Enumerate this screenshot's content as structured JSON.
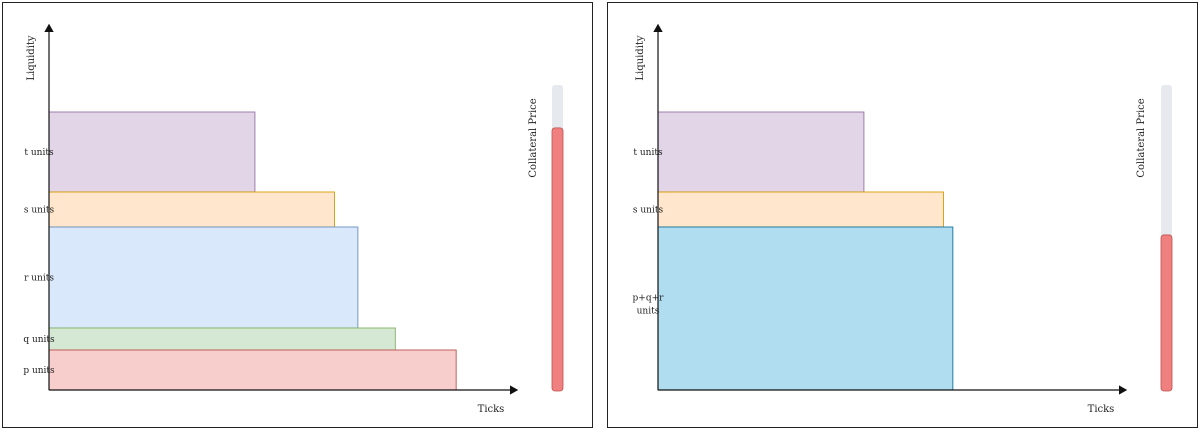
{
  "colors": {
    "purple_fill": "#e1d5e7",
    "purple_stroke": "#9673a6",
    "orange_fill": "#ffe6cc",
    "orange_stroke": "#d79b00",
    "blue_fill": "#dae8fc",
    "blue_stroke": "#6c8ebf",
    "green_fill": "#d5e8d4",
    "green_stroke": "#82b366",
    "red_fill": "#f8cecc",
    "red_stroke": "#b85450",
    "cyan_fill": "#b1ddf0",
    "cyan_stroke": "#10739e",
    "gauge_track": "#e6e9ee",
    "gauge_fill": "#f08080",
    "gauge_stroke": "#c0504d"
  },
  "left": {
    "y_axis_label": "Liquidity",
    "x_axis_label": "Ticks",
    "gauge_label": "Collateral Price",
    "gauge_level": 0.86,
    "bands": [
      {
        "label": "t units",
        "color": "purple",
        "tick_extent": 0.44
      },
      {
        "label": "s units",
        "color": "orange",
        "tick_extent": 0.61
      },
      {
        "label": "r units",
        "color": "blue",
        "tick_extent": 0.66
      },
      {
        "label": "q units",
        "color": "green",
        "tick_extent": 0.74
      },
      {
        "label": "p units",
        "color": "red",
        "tick_extent": 0.87
      }
    ]
  },
  "right": {
    "y_axis_label": "Liquidity",
    "x_axis_label": "Ticks",
    "gauge_label": "Collateral Price",
    "gauge_level": 0.51,
    "bands": [
      {
        "label": "t units",
        "color": "purple",
        "tick_extent": 0.44
      },
      {
        "label": "s units",
        "color": "orange",
        "tick_extent": 0.61
      },
      {
        "label": "p+q+r",
        "label2": "units",
        "color": "cyan",
        "tick_extent": 0.63
      }
    ]
  }
}
